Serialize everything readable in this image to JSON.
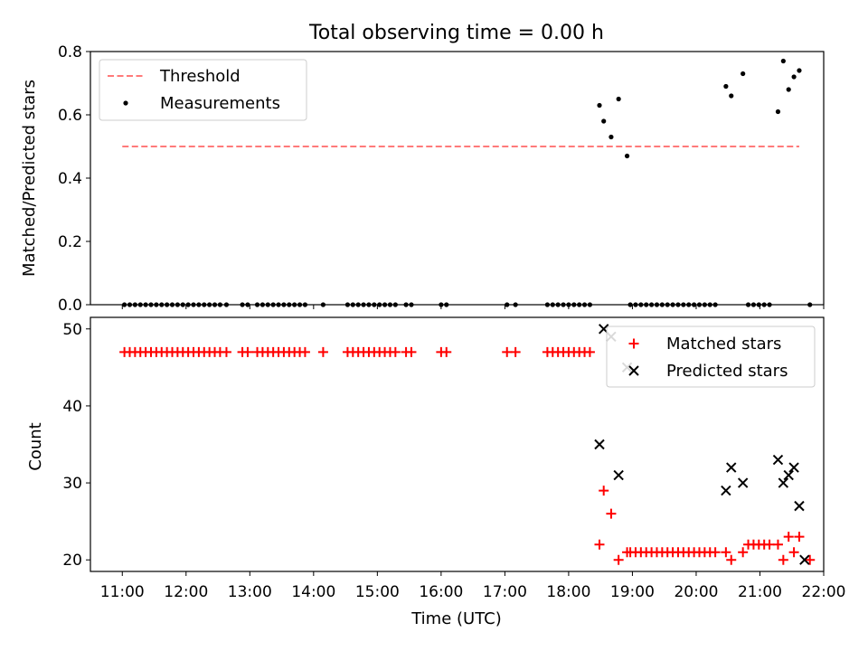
{
  "chart_data": [
    {
      "type": "scatter",
      "title": "Total observing time = 0.00 h",
      "xlabel": "",
      "ylabel": "Matched/Predicted stars",
      "xlim": [
        "10:30",
        "22:00"
      ],
      "ylim": [
        0,
        0.8
      ],
      "yticks": [
        0,
        0.2,
        0.4,
        0.6,
        0.8
      ],
      "ytick_labels": [
        "0.0",
        "0.2",
        "0.4",
        "0.6",
        "0.8"
      ],
      "legend": {
        "position": "top-left",
        "entries": [
          "Threshold",
          "Measurements"
        ]
      },
      "series": [
        {
          "name": "Threshold",
          "style": "dashed-line",
          "color": "#ff7a7a",
          "x": [
            "11:00",
            "21:37"
          ],
          "y": [
            0.5,
            0.5
          ]
        },
        {
          "name": "Measurements",
          "style": "point",
          "color": "#000000",
          "x": [
            "11:02",
            "11:07",
            "11:12",
            "11:17",
            "11:22",
            "11:27",
            "11:32",
            "11:37",
            "11:42",
            "11:47",
            "11:52",
            "11:57",
            "12:02",
            "12:07",
            "12:12",
            "12:17",
            "12:22",
            "12:27",
            "12:32",
            "12:38",
            "12:53",
            "12:58",
            "13:07",
            "13:12",
            "13:17",
            "13:22",
            "13:27",
            "13:32",
            "13:37",
            "13:42",
            "13:47",
            "13:52",
            "14:09",
            "14:32",
            "14:37",
            "14:42",
            "14:47",
            "14:52",
            "14:57",
            "15:02",
            "15:07",
            "15:12",
            "15:17",
            "15:27",
            "15:32",
            "16:00",
            "16:05",
            "17:02",
            "17:10",
            "17:40",
            "17:45",
            "17:50",
            "17:55",
            "18:00",
            "18:05",
            "18:10",
            "18:15",
            "18:20",
            "18:29",
            "18:33",
            "18:40",
            "18:47",
            "18:55",
            "18:58",
            "19:03",
            "19:08",
            "19:13",
            "19:18",
            "19:23",
            "19:28",
            "19:33",
            "19:38",
            "19:43",
            "19:48",
            "19:53",
            "19:58",
            "20:03",
            "20:08",
            "20:13",
            "20:18",
            "20:28",
            "20:33",
            "20:44",
            "20:49",
            "20:54",
            "20:59",
            "21:04",
            "21:09",
            "21:17",
            "21:22",
            "21:27",
            "21:32",
            "21:37",
            "21:47"
          ],
          "y": [
            0,
            0,
            0,
            0,
            0,
            0,
            0,
            0,
            0,
            0,
            0,
            0,
            0,
            0,
            0,
            0,
            0,
            0,
            0,
            0,
            0,
            0,
            0,
            0,
            0,
            0,
            0,
            0,
            0,
            0,
            0,
            0,
            0,
            0,
            0,
            0,
            0,
            0,
            0,
            0,
            0,
            0,
            0,
            0,
            0,
            0,
            0,
            0,
            0,
            0,
            0,
            0,
            0,
            0,
            0,
            0,
            0,
            0,
            0.63,
            0.58,
            0.53,
            0.65,
            0.47,
            0,
            0,
            0,
            0,
            0,
            0,
            0,
            0,
            0,
            0,
            0,
            0,
            0,
            0,
            0,
            0,
            0,
            0.69,
            0.66,
            0.73,
            0,
            0,
            0,
            0,
            0,
            0.61,
            0.77,
            0.68,
            0.72,
            0.74,
            0
          ]
        }
      ]
    },
    {
      "type": "scatter",
      "title": "",
      "xlabel": "Time (UTC)",
      "ylabel": "Count",
      "xlim": [
        "10:30",
        "22:00"
      ],
      "ylim": [
        18.5,
        51.5
      ],
      "yticks": [
        20,
        30,
        40,
        50
      ],
      "ytick_labels": [
        "20",
        "30",
        "40",
        "50"
      ],
      "xtick_labels": [
        "11:00",
        "12:00",
        "13:00",
        "14:00",
        "15:00",
        "16:00",
        "17:00",
        "18:00",
        "19:00",
        "20:00",
        "21:00",
        "22:00"
      ],
      "legend": {
        "position": "top-right",
        "entries": [
          "Matched stars",
          "Predicted stars"
        ]
      },
      "series": [
        {
          "name": "Matched stars",
          "marker": "plus",
          "color": "#ff0000",
          "x": [
            "11:02",
            "11:07",
            "11:12",
            "11:17",
            "11:22",
            "11:27",
            "11:32",
            "11:37",
            "11:42",
            "11:47",
            "11:52",
            "11:57",
            "12:02",
            "12:07",
            "12:12",
            "12:17",
            "12:22",
            "12:27",
            "12:32",
            "12:38",
            "12:53",
            "12:58",
            "13:07",
            "13:12",
            "13:17",
            "13:22",
            "13:27",
            "13:32",
            "13:37",
            "13:42",
            "13:47",
            "13:52",
            "14:09",
            "14:32",
            "14:37",
            "14:42",
            "14:47",
            "14:52",
            "14:57",
            "15:02",
            "15:07",
            "15:12",
            "15:17",
            "15:27",
            "15:32",
            "16:00",
            "16:05",
            "17:02",
            "17:10",
            "17:40",
            "17:45",
            "17:50",
            "17:55",
            "18:00",
            "18:05",
            "18:10",
            "18:15",
            "18:20",
            "18:29",
            "18:33",
            "18:40",
            "18:47",
            "18:55",
            "18:58",
            "19:03",
            "19:08",
            "19:13",
            "19:18",
            "19:23",
            "19:28",
            "19:33",
            "19:38",
            "19:43",
            "19:48",
            "19:53",
            "19:58",
            "20:03",
            "20:08",
            "20:13",
            "20:18",
            "20:28",
            "20:33",
            "20:44",
            "20:49",
            "20:54",
            "20:59",
            "21:04",
            "21:09",
            "21:17",
            "21:22",
            "21:27",
            "21:32",
            "21:37",
            "21:47"
          ],
          "y": [
            47,
            47,
            47,
            47,
            47,
            47,
            47,
            47,
            47,
            47,
            47,
            47,
            47,
            47,
            47,
            47,
            47,
            47,
            47,
            47,
            47,
            47,
            47,
            47,
            47,
            47,
            47,
            47,
            47,
            47,
            47,
            47,
            47,
            47,
            47,
            47,
            47,
            47,
            47,
            47,
            47,
            47,
            47,
            47,
            47,
            47,
            47,
            47,
            47,
            47,
            47,
            47,
            47,
            47,
            47,
            47,
            47,
            47,
            22,
            29,
            26,
            20,
            21,
            21,
            21,
            21,
            21,
            21,
            21,
            21,
            21,
            21,
            21,
            21,
            21,
            21,
            21,
            21,
            21,
            21,
            21,
            20,
            21,
            22,
            22,
            22,
            22,
            22,
            22,
            20,
            23,
            21,
            23,
            20
          ]
        },
        {
          "name": "Predicted stars",
          "marker": "x",
          "color": "#000000",
          "x": [
            "18:29",
            "18:33",
            "18:40",
            "18:47",
            "18:55",
            "20:28",
            "20:33",
            "20:44",
            "21:17",
            "21:22",
            "21:27",
            "21:32",
            "21:37",
            "21:42"
          ],
          "y": [
            35,
            50,
            49,
            31,
            45,
            29,
            32,
            30,
            33,
            30,
            31,
            32,
            27,
            20
          ]
        }
      ]
    }
  ]
}
